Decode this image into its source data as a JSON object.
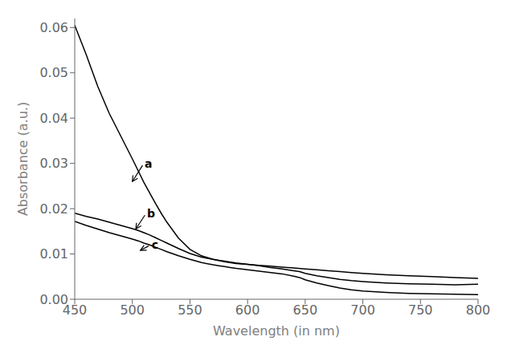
{
  "chart_data": {
    "type": "line",
    "xlabel": "Wavelength (in nm)",
    "ylabel": "Absorbance (a.u.)",
    "xlim": [
      450,
      800
    ],
    "ylim": [
      0,
      0.062
    ],
    "xticks": [
      450,
      500,
      550,
      600,
      650,
      700,
      750,
      800
    ],
    "yticks": [
      {
        "value": 0,
        "label": "0.00"
      },
      0.01,
      0.02,
      0.03,
      0.04,
      0.05,
      0.06
    ],
    "grid": false,
    "series": [
      {
        "color": "#000000",
        "x": [
          450,
          460,
          470,
          480,
          490,
          500,
          510,
          515,
          520,
          525,
          530,
          540,
          550,
          560,
          570,
          580,
          590,
          600,
          610,
          620,
          630,
          640,
          650,
          660,
          670,
          680,
          690,
          700,
          720,
          740,
          760,
          780,
          800
        ],
        "values": [
          0.0605,
          0.054,
          0.047,
          0.041,
          0.036,
          0.031,
          0.0258,
          0.0235,
          0.0212,
          0.019,
          0.017,
          0.0135,
          0.011,
          0.0096,
          0.0088,
          0.0083,
          0.0079,
          0.0077,
          0.0075,
          0.0073,
          0.0071,
          0.0069,
          0.0067,
          0.0065,
          0.0063,
          0.0061,
          0.0059,
          0.0057,
          0.0054,
          0.0052,
          0.005,
          0.0048,
          0.0046
        ]
      },
      {
        "color": "#000000",
        "x": [
          450,
          460,
          470,
          480,
          490,
          500,
          505,
          510,
          515,
          520,
          525,
          530,
          540,
          550,
          560,
          570,
          575,
          580,
          585,
          590,
          600,
          610,
          620,
          630,
          640,
          645,
          650,
          660,
          670,
          680,
          690,
          700,
          720,
          740,
          760,
          780,
          800
        ],
        "values": [
          0.019,
          0.0183,
          0.0177,
          0.017,
          0.0163,
          0.0156,
          0.0152,
          0.0147,
          0.0142,
          0.0136,
          0.013,
          0.0124,
          0.0112,
          0.0101,
          0.0093,
          0.0088,
          0.0086,
          0.0084,
          0.0082,
          0.008,
          0.0077,
          0.0074,
          0.007,
          0.0067,
          0.0063,
          0.0061,
          0.0057,
          0.0052,
          0.0048,
          0.0044,
          0.0041,
          0.0039,
          0.0036,
          0.0034,
          0.0033,
          0.0032,
          0.0033
        ]
      },
      {
        "color": "#000000",
        "x": [
          450,
          460,
          470,
          480,
          490,
          500,
          505,
          510,
          515,
          520,
          525,
          530,
          540,
          550,
          560,
          570,
          575,
          580,
          585,
          590,
          600,
          610,
          620,
          630,
          640,
          645,
          650,
          660,
          670,
          680,
          690,
          700,
          720,
          740,
          760,
          780,
          800
        ],
        "values": [
          0.0172,
          0.0163,
          0.0155,
          0.0147,
          0.014,
          0.0133,
          0.0129,
          0.0124,
          0.012,
          0.0115,
          0.011,
          0.0105,
          0.0096,
          0.0088,
          0.0081,
          0.0076,
          0.0074,
          0.0072,
          0.007,
          0.0068,
          0.0065,
          0.0062,
          0.0059,
          0.0056,
          0.0051,
          0.0048,
          0.0043,
          0.0036,
          0.003,
          0.0025,
          0.0021,
          0.0018,
          0.0015,
          0.0013,
          0.0012,
          0.0011,
          0.001
        ]
      }
    ],
    "annotations": [
      {
        "text": "a",
        "x": 510,
        "y": 0.03,
        "arrow_x": 500,
        "arrow_y": 0.026
      },
      {
        "text": "b",
        "x": 512,
        "y": 0.019,
        "arrow_x": 503,
        "arrow_y": 0.0155
      },
      {
        "text": "c",
        "x": 516,
        "y": 0.012,
        "arrow_x": 507,
        "arrow_y": 0.0108
      }
    ]
  }
}
